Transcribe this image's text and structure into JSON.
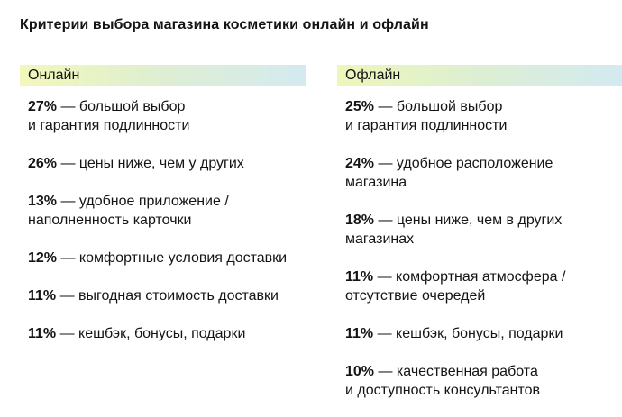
{
  "title": "Критерии выбора магазина косметики онлайн и офлайн",
  "online": {
    "header": "Онлайн",
    "items": [
      {
        "pct": "27%",
        "text1": " — большой выбор",
        "text2": "и гарантия подлинности"
      },
      {
        "pct": "26%",
        "text1": " — цены ниже, чем у других",
        "text2": ""
      },
      {
        "pct": "13%",
        "text1": " — удобное приложение /",
        "text2": "наполненность карточки"
      },
      {
        "pct": "12%",
        "text1": " — комфортные условия доставки",
        "text2": ""
      },
      {
        "pct": "11%",
        "text1": " — выгодная стоимость доставки",
        "text2": ""
      },
      {
        "pct": "11%",
        "text1": " — кешбэк, бонусы, подарки",
        "text2": ""
      }
    ]
  },
  "offline": {
    "header": "Офлайн",
    "items": [
      {
        "pct": "25%",
        "text1": " — большой выбор",
        "text2": "и гарантия подлинности"
      },
      {
        "pct": "24%",
        "text1": " — удобное расположение",
        "text2": "магазина"
      },
      {
        "pct": "18%",
        "text1": " — цены ниже, чем в других",
        "text2": "магазинах"
      },
      {
        "pct": "11%",
        "text1": " — комфортная атмосфера /",
        "text2": "отсутствие очередей"
      },
      {
        "pct": "11%",
        "text1": " — кешбэк, бонусы, подарки",
        "text2": ""
      },
      {
        "pct": "10%",
        "text1": " — качественная работа",
        "text2": "и доступность консультантов"
      }
    ]
  }
}
